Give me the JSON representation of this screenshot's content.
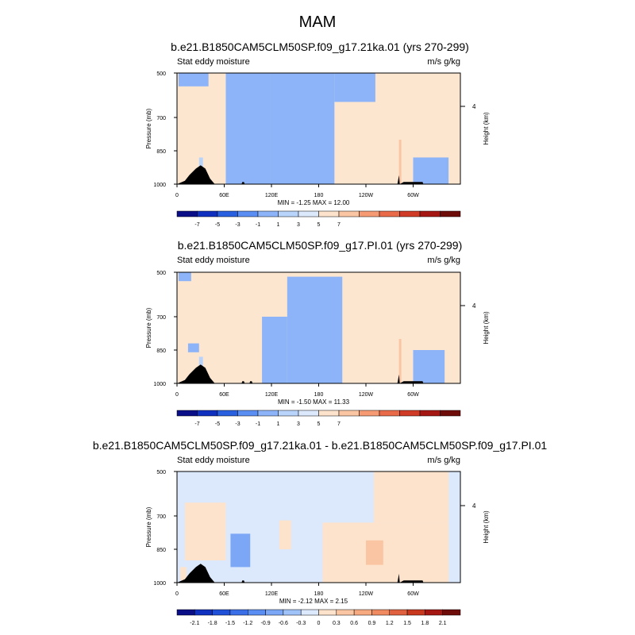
{
  "page_title": "MAM",
  "chart_data": [
    {
      "type": "heatmap",
      "title": "b.e21.B1850CAM5CLM50SP.f09_g17.21ka.01 (yrs 270-299)",
      "variable": "Stat eddy moisture",
      "units": "m/s g/kg",
      "ylabel": "Pressure (mb)",
      "ylabel_right": "Height (km)",
      "yticks": [
        "500",
        "700",
        "850",
        "1000"
      ],
      "ytick_values": [
        500,
        700,
        850,
        1000
      ],
      "right_ticks": [
        "4"
      ],
      "xticks": [
        "0",
        "60E",
        "120E",
        "180",
        "120W",
        "60W"
      ],
      "xtick_values": [
        0,
        60,
        120,
        180,
        240,
        300
      ],
      "xlim": [
        0,
        360
      ],
      "ylim": [
        1000,
        500
      ],
      "stats": "MIN =  -1.25   MAX =  12.00",
      "colorbar_labels": [
        "-7",
        "-5",
        "-3",
        "-1",
        "1",
        "3",
        "5",
        "7"
      ],
      "colorbar_colors": [
        "#0a0f87",
        "#1030c0",
        "#2860e0",
        "#5a8ef2",
        "#8db4f8",
        "#b9d4fb",
        "#dce9fc",
        "#fde3cb",
        "#fac5a2",
        "#f59a72",
        "#e86a48",
        "#cf3b26",
        "#a51713",
        "#6e0c0a"
      ],
      "bg_color": "#fde6d0",
      "neg_color": "#dce9fc",
      "regions": [
        {
          "value": -0.5,
          "lon0": 62,
          "lon1": 118,
          "p0": 500,
          "p1": 1000
        },
        {
          "value": -0.5,
          "lon0": 118,
          "lon1": 200,
          "p0": 500,
          "p1": 1000
        },
        {
          "value": -0.5,
          "lon0": 200,
          "lon1": 252,
          "p0": 500,
          "p1": 630
        },
        {
          "value": -0.5,
          "lon0": 300,
          "lon1": 345,
          "p0": 880,
          "p1": 1000
        },
        {
          "value": -0.5,
          "lon0": 2,
          "lon1": 40,
          "p0": 500,
          "p1": 560
        },
        {
          "value": 12.0,
          "lon0": 282,
          "lon1": 285,
          "p0": 800,
          "p1": 1000
        },
        {
          "value": 2.0,
          "lon0": 28,
          "lon1": 33,
          "p0": 880,
          "p1": 990
        }
      ],
      "topography": [
        [
          0,
          1000
        ],
        [
          10,
          985
        ],
        [
          16,
          958
        ],
        [
          24,
          930
        ],
        [
          30,
          915
        ],
        [
          36,
          930
        ],
        [
          42,
          975
        ],
        [
          48,
          1000
        ],
        [
          82,
          1000
        ],
        [
          83,
          990
        ],
        [
          85,
          990
        ],
        [
          86,
          1000
        ],
        [
          280,
          1000
        ],
        [
          282,
          960
        ],
        [
          283,
          1000
        ],
        [
          288,
          990
        ],
        [
          312,
          990
        ],
        [
          313,
          1000
        ]
      ]
    },
    {
      "type": "heatmap",
      "title": "b.e21.B1850CAM5CLM50SP.f09_g17.PI.01 (yrs 270-299)",
      "variable": "Stat eddy moisture",
      "units": "m/s g/kg",
      "ylabel": "Pressure (mb)",
      "ylabel_right": "Height (km)",
      "yticks": [
        "500",
        "700",
        "850",
        "1000"
      ],
      "ytick_values": [
        500,
        700,
        850,
        1000
      ],
      "right_ticks": [
        "4"
      ],
      "xticks": [
        "0",
        "60E",
        "120E",
        "180",
        "120W",
        "60W"
      ],
      "xtick_values": [
        0,
        60,
        120,
        180,
        240,
        300
      ],
      "xlim": [
        0,
        360
      ],
      "ylim": [
        1000,
        500
      ],
      "stats": "MIN =  -1.50   MAX =  11.33",
      "colorbar_labels": [
        "-7",
        "-5",
        "-3",
        "-1",
        "1",
        "3",
        "5",
        "7"
      ],
      "colorbar_colors": [
        "#0a0f87",
        "#1030c0",
        "#2860e0",
        "#5a8ef2",
        "#8db4f8",
        "#b9d4fb",
        "#dce9fc",
        "#fde3cb",
        "#fac5a2",
        "#f59a72",
        "#e86a48",
        "#cf3b26",
        "#a51713",
        "#6e0c0a"
      ],
      "bg_color": "#fde6d0",
      "neg_color": "#dce9fc",
      "regions": [
        {
          "value": -0.5,
          "lon0": 140,
          "lon1": 210,
          "p0": 520,
          "p1": 1000
        },
        {
          "value": -0.5,
          "lon0": 108,
          "lon1": 140,
          "p0": 700,
          "p1": 1000
        },
        {
          "value": -0.5,
          "lon0": 2,
          "lon1": 18,
          "p0": 500,
          "p1": 540
        },
        {
          "value": -0.5,
          "lon0": 300,
          "lon1": 340,
          "p0": 850,
          "p1": 1000
        },
        {
          "value": -0.5,
          "lon0": 14,
          "lon1": 28,
          "p0": 820,
          "p1": 860
        },
        {
          "value": 11.33,
          "lon0": 282,
          "lon1": 285,
          "p0": 800,
          "p1": 1000
        },
        {
          "value": 2.0,
          "lon0": 28,
          "lon1": 33,
          "p0": 880,
          "p1": 990
        }
      ],
      "topography": [
        [
          0,
          1000
        ],
        [
          10,
          985
        ],
        [
          16,
          958
        ],
        [
          24,
          930
        ],
        [
          30,
          915
        ],
        [
          36,
          930
        ],
        [
          42,
          975
        ],
        [
          48,
          1000
        ],
        [
          82,
          1000
        ],
        [
          83,
          990
        ],
        [
          85,
          990
        ],
        [
          86,
          1000
        ],
        [
          92,
          1000
        ],
        [
          93,
          990
        ],
        [
          95,
          990
        ],
        [
          96,
          1000
        ],
        [
          280,
          1000
        ],
        [
          282,
          960
        ],
        [
          283,
          1000
        ],
        [
          288,
          990
        ],
        [
          312,
          990
        ],
        [
          313,
          1000
        ]
      ]
    },
    {
      "type": "heatmap",
      "title": "b.e21.B1850CAM5CLM50SP.f09_g17.21ka.01 - b.e21.B1850CAM5CLM50SP.f09_g17.PI.01",
      "variable": "Stat eddy moisture",
      "units": "m/s g/kg",
      "ylabel": "Pressure (mb)",
      "ylabel_right": "Height (km)",
      "yticks": [
        "500",
        "700",
        "850",
        "1000"
      ],
      "ytick_values": [
        500,
        700,
        850,
        1000
      ],
      "right_ticks": [
        "4"
      ],
      "xticks": [
        "0",
        "60E",
        "120E",
        "180",
        "120W",
        "60W"
      ],
      "xtick_values": [
        0,
        60,
        120,
        180,
        240,
        300
      ],
      "xlim": [
        0,
        360
      ],
      "ylim": [
        1000,
        500
      ],
      "stats": "MIN =  -2.12   MAX =   2.15",
      "colorbar_labels": [
        "-2.1",
        "-1.8",
        "-1.5",
        "-1.2",
        "-0.9",
        "-0.6",
        "-0.3",
        "0",
        "0.3",
        "0.6",
        "0.9",
        "1.2",
        "1.5",
        "1.8",
        "2.1"
      ],
      "colorbar_colors": [
        "#0a0f87",
        "#1030c0",
        "#2050d8",
        "#3b6fe8",
        "#5a8ef2",
        "#7ba7f6",
        "#9fc2f9",
        "#dce9fc",
        "#fde3cb",
        "#fac5a2",
        "#f7a97f",
        "#f08a61",
        "#e0613f",
        "#c8381f",
        "#a51713",
        "#6e0c0a"
      ],
      "bg_color": "#dce9fc",
      "neg_color": "#dce9fc",
      "regions": [
        {
          "value": 0.15,
          "lon0": 10,
          "lon1": 62,
          "p0": 640,
          "p1": 900
        },
        {
          "value": 0.15,
          "lon0": 185,
          "lon1": 345,
          "p0": 730,
          "p1": 1000
        },
        {
          "value": 0.15,
          "lon0": 250,
          "lon1": 345,
          "p0": 500,
          "p1": 730
        },
        {
          "value": 0.15,
          "lon0": 130,
          "lon1": 145,
          "p0": 720,
          "p1": 850
        },
        {
          "value": 0.5,
          "lon0": 240,
          "lon1": 262,
          "p0": 810,
          "p1": 920
        },
        {
          "value": -0.8,
          "lon0": 68,
          "lon1": 93,
          "p0": 780,
          "p1": 930
        },
        {
          "value": 0.15,
          "lon0": 4,
          "lon1": 12,
          "p0": 930,
          "p1": 990
        }
      ],
      "topography": [
        [
          0,
          1000
        ],
        [
          10,
          985
        ],
        [
          16,
          958
        ],
        [
          24,
          930
        ],
        [
          30,
          915
        ],
        [
          36,
          930
        ],
        [
          42,
          975
        ],
        [
          48,
          1000
        ],
        [
          82,
          1000
        ],
        [
          83,
          990
        ],
        [
          85,
          990
        ],
        [
          86,
          1000
        ],
        [
          280,
          1000
        ],
        [
          282,
          960
        ],
        [
          283,
          1000
        ],
        [
          288,
          990
        ],
        [
          312,
          990
        ],
        [
          313,
          1000
        ]
      ]
    }
  ]
}
